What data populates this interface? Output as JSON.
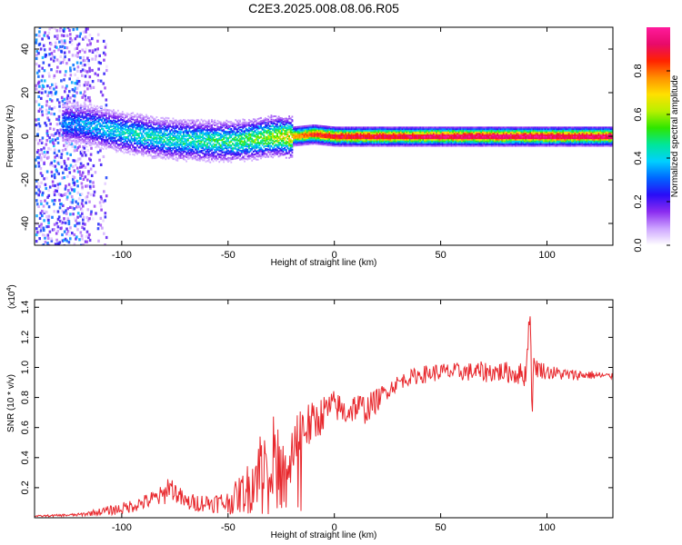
{
  "title": "C2E3.2025.008.08.06.R05",
  "chart_data": [
    {
      "type": "heatmap",
      "title": "C2E3.2025.008.08.06.R05",
      "xlabel": "Height of straight line (km)",
      "ylabel": "Frequency (Hz)",
      "xlim": [
        -141,
        131
      ],
      "ylim": [
        -50,
        50
      ],
      "xticks": [
        -100,
        -50,
        0,
        50,
        100
      ],
      "yticks": [
        -40,
        -20,
        0,
        20,
        40
      ],
      "colorbar": {
        "label": "Normalized spectral amplitude",
        "range": [
          0,
          1
        ],
        "ticks": [
          "0.0",
          "0.2",
          "0.4",
          "0.6",
          "0.8"
        ],
        "colormap": [
          "#ffffff",
          "#cda4ff",
          "#8b2cf0",
          "#2a0cf7",
          "#0066ff",
          "#00d0ff",
          "#00e69a",
          "#2ee600",
          "#b8f000",
          "#ffe000",
          "#ff9000",
          "#ff2200",
          "#e80a6a",
          "#ff1a9c"
        ]
      },
      "ridge": {
        "x": [
          -125,
          -115,
          -100,
          -80,
          -60,
          -45,
          -30,
          -20,
          -10,
          0,
          20,
          50,
          80,
          100,
          131
        ],
        "freq": [
          6,
          5,
          2,
          -1,
          -2,
          -2,
          0,
          0,
          1,
          0,
          0,
          0,
          0,
          0,
          0
        ],
        "amplitude": [
          0.35,
          0.4,
          0.45,
          0.48,
          0.5,
          0.55,
          0.62,
          0.75,
          0.85,
          0.9,
          0.92,
          0.95,
          0.95,
          0.95,
          0.95
        ]
      }
    },
    {
      "type": "line",
      "xlabel": "Height of straight line (km)",
      "ylabel": "SNR (10 * v/v)",
      "y_multiplier": "(x10",
      "y_multiplier_exp": "4",
      "y_multiplier_close": ")",
      "xlim": [
        -141,
        131
      ],
      "ylim": [
        0,
        1.45
      ],
      "xticks": [
        -100,
        -50,
        0,
        50,
        100
      ],
      "yticks": [
        "0.2",
        "0.4",
        "0.6",
        "0.8",
        "1.0",
        "1.2",
        "1.4"
      ],
      "series": [
        {
          "name": "SNR",
          "color": "#e8282d",
          "x": [
            -141,
            -120,
            -100,
            -90,
            -80,
            -78,
            -70,
            -60,
            -50,
            -45,
            -40,
            -35,
            -30,
            -25,
            -22,
            -20,
            -15,
            -10,
            -5,
            0,
            5,
            10,
            15,
            20,
            25,
            30,
            35,
            40,
            50,
            60,
            70,
            80,
            90,
            92,
            93,
            94,
            95,
            100,
            110,
            120,
            131
          ],
          "values": [
            0.01,
            0.02,
            0.06,
            0.1,
            0.15,
            0.22,
            0.1,
            0.1,
            0.1,
            0.15,
            0.2,
            0.35,
            0.45,
            0.3,
            0.2,
            0.45,
            0.6,
            0.62,
            0.7,
            0.75,
            0.7,
            0.74,
            0.72,
            0.78,
            0.85,
            0.9,
            0.93,
            0.95,
            0.97,
            0.97,
            0.97,
            0.97,
            0.95,
            1.4,
            0.72,
            1.05,
            1.0,
            0.97,
            0.95,
            0.95,
            0.94
          ],
          "noise": [
            0.005,
            0.01,
            0.04,
            0.05,
            0.07,
            0.08,
            0.06,
            0.06,
            0.08,
            0.12,
            0.18,
            0.25,
            0.28,
            0.25,
            0.2,
            0.2,
            0.18,
            0.15,
            0.12,
            0.1,
            0.1,
            0.1,
            0.1,
            0.08,
            0.06,
            0.05,
            0.05,
            0.06,
            0.06,
            0.06,
            0.07,
            0.07,
            0.08,
            0.08,
            0.08,
            0.08,
            0.07,
            0.05,
            0.04,
            0.03,
            0.02
          ]
        }
      ]
    }
  ]
}
